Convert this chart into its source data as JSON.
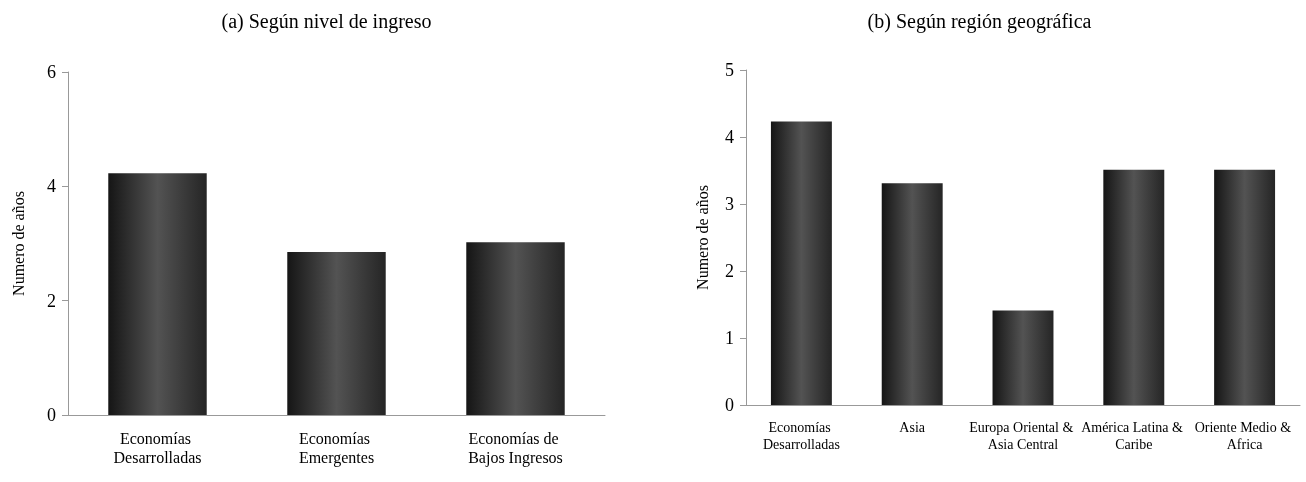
{
  "chart_data": [
    {
      "type": "bar",
      "title": "(a) Según nivel de ingreso",
      "ylabel": "Numero de años",
      "categories": [
        "Economías Desarrolladas",
        "Economías Emergentes",
        "Economías de Bajos Ingresos"
      ],
      "values": [
        4.23,
        2.85,
        3.02
      ],
      "color": "#2e2e2e",
      "ylim": [
        0,
        6
      ],
      "yticks": [
        0,
        2,
        4,
        6
      ],
      "grid": false
    },
    {
      "type": "bar",
      "title": "(b) Según región geográfica",
      "ylabel": "Numero de años",
      "categories": [
        "Economías Desarrolladas",
        "Asia",
        "Europa Oriental & Asia Central",
        "América Latina & Caribe",
        "Oriente Medio & Africa"
      ],
      "values": [
        4.23,
        3.31,
        1.41,
        3.51,
        3.51
      ],
      "color": "#2e2e2e",
      "ylim": [
        0,
        5
      ],
      "yticks": [
        0,
        1,
        2,
        3,
        4,
        5
      ],
      "grid": false
    }
  ]
}
